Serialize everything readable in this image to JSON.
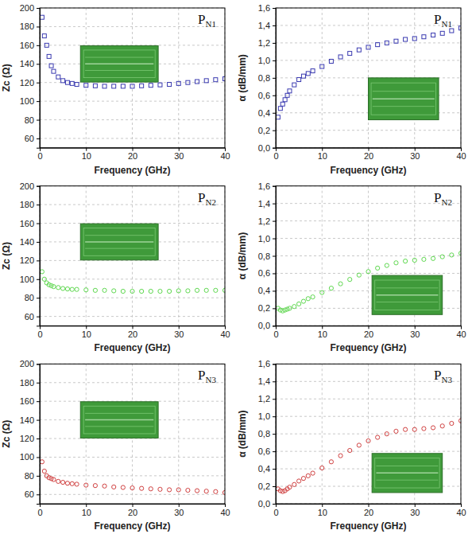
{
  "chart_data": [
    {
      "type": "scatter",
      "title": "PN1",
      "x_label": "Frequency (GHz)",
      "y_label": "Zc (Ω)",
      "x": [
        0.5,
        1,
        1.5,
        2,
        2.5,
        3,
        4,
        5,
        6,
        7,
        8,
        10,
        12,
        14,
        16,
        18,
        20,
        22,
        24,
        26,
        28,
        30,
        32,
        34,
        36,
        38,
        40
      ],
      "values": [
        190,
        170,
        160,
        148,
        138,
        132,
        126,
        122,
        120,
        119,
        118,
        117,
        116.5,
        116,
        116,
        116,
        116,
        116.5,
        117,
        117.5,
        118,
        119,
        120,
        121,
        122,
        123,
        124
      ],
      "color": "#3a3ab0",
      "marker": "square",
      "grid": true,
      "xlim": [
        0,
        40
      ],
      "xticks": [
        0,
        10,
        20,
        30,
        40
      ],
      "ylim": [
        50,
        200
      ],
      "yticks": [
        60,
        80,
        100,
        120,
        140,
        160,
        180,
        200
      ]
    },
    {
      "type": "scatter",
      "title": "PN1",
      "x_label": "Frequency (GHz)",
      "y_label": "α (dB/mm)",
      "x": [
        0.5,
        1,
        1.5,
        2,
        2.5,
        3,
        4,
        5,
        6,
        7,
        8,
        10,
        12,
        14,
        16,
        18,
        20,
        22,
        24,
        26,
        28,
        30,
        32,
        34,
        36,
        38,
        40
      ],
      "values": [
        0.35,
        0.45,
        0.5,
        0.55,
        0.6,
        0.65,
        0.72,
        0.78,
        0.82,
        0.85,
        0.88,
        0.93,
        0.99,
        1.04,
        1.08,
        1.12,
        1.15,
        1.18,
        1.2,
        1.22,
        1.24,
        1.25,
        1.27,
        1.29,
        1.31,
        1.34,
        1.37
      ],
      "color": "#3a3ab0",
      "marker": "square",
      "grid": true,
      "xlim": [
        0,
        40
      ],
      "xticks": [
        0,
        10,
        20,
        30,
        40
      ],
      "ylim": [
        0,
        1.6
      ],
      "yticks": [
        {
          "value": 0,
          "label": "0,0"
        },
        {
          "value": 0.2,
          "label": "0,2"
        },
        {
          "value": 0.4,
          "label": "0,4"
        },
        {
          "value": 0.6,
          "label": "0,6"
        },
        {
          "value": 0.8,
          "label": "0,8"
        },
        {
          "value": 1,
          "label": "1,0"
        },
        {
          "value": 1.2,
          "label": "1,2"
        },
        {
          "value": 1.4,
          "label": "1,4"
        },
        {
          "value": 1.6,
          "label": "1,6"
        }
      ]
    },
    {
      "type": "scatter",
      "title": "PN2",
      "x_label": "Frequency (GHz)",
      "y_label": "Zc (Ω)",
      "x": [
        0.5,
        1,
        1.5,
        2,
        2.5,
        3,
        4,
        5,
        6,
        7,
        8,
        10,
        12,
        14,
        16,
        18,
        20,
        22,
        24,
        26,
        28,
        30,
        32,
        34,
        36,
        38,
        40
      ],
      "values": [
        108,
        100,
        96,
        94,
        93,
        92,
        91,
        90,
        89.5,
        89,
        89,
        88.5,
        88,
        88,
        87.5,
        87,
        87,
        87,
        87,
        87,
        87,
        87.5,
        87.5,
        88,
        88,
        88,
        88
      ],
      "color": "#5fd850",
      "marker": "circle",
      "grid": true,
      "xlim": [
        0,
        40
      ],
      "xticks": [
        0,
        10,
        20,
        30,
        40
      ],
      "ylim": [
        50,
        200
      ],
      "yticks": [
        60,
        80,
        100,
        120,
        140,
        160,
        180,
        200
      ]
    },
    {
      "type": "scatter",
      "title": "PN2",
      "x_label": "Frequency (GHz)",
      "y_label": "α (dB/mm)",
      "x": [
        0.5,
        1,
        1.5,
        2,
        2.5,
        3,
        4,
        5,
        6,
        7,
        8,
        10,
        12,
        14,
        16,
        18,
        20,
        22,
        24,
        26,
        28,
        30,
        32,
        34,
        36,
        38,
        40
      ],
      "values": [
        0.2,
        0.18,
        0.17,
        0.18,
        0.19,
        0.2,
        0.22,
        0.25,
        0.28,
        0.31,
        0.33,
        0.38,
        0.43,
        0.48,
        0.53,
        0.58,
        0.62,
        0.66,
        0.69,
        0.72,
        0.74,
        0.75,
        0.76,
        0.77,
        0.79,
        0.81,
        0.83
      ],
      "color": "#5fd850",
      "marker": "circle",
      "grid": true,
      "xlim": [
        0,
        40
      ],
      "xticks": [
        0,
        10,
        20,
        30,
        40
      ],
      "ylim": [
        0,
        1.6
      ],
      "yticks": [
        {
          "value": 0,
          "label": "0,0"
        },
        {
          "value": 0.2,
          "label": "0,2"
        },
        {
          "value": 0.4,
          "label": "0,4"
        },
        {
          "value": 0.6,
          "label": "0,6"
        },
        {
          "value": 0.8,
          "label": "0,8"
        },
        {
          "value": 1,
          "label": "1,0"
        },
        {
          "value": 1.2,
          "label": "1,2"
        },
        {
          "value": 1.4,
          "label": "1,4"
        },
        {
          "value": 1.6,
          "label": "1,6"
        }
      ]
    },
    {
      "type": "scatter",
      "title": "PN3",
      "x_label": "Frequency (GHz)",
      "y_label": "Zc (Ω)",
      "x": [
        0.5,
        1,
        1.5,
        2,
        2.5,
        3,
        4,
        5,
        6,
        7,
        8,
        10,
        12,
        14,
        16,
        18,
        20,
        22,
        24,
        26,
        28,
        30,
        32,
        34,
        36,
        38,
        40
      ],
      "values": [
        95,
        85,
        80,
        78,
        77,
        76,
        74,
        73,
        72,
        71.5,
        71,
        70,
        69.5,
        69,
        68,
        67.5,
        67,
        66.5,
        66,
        65.5,
        65,
        65,
        64.5,
        64,
        63.5,
        63,
        62
      ],
      "color": "#d04040",
      "marker": "circle",
      "grid": true,
      "xlim": [
        0,
        40
      ],
      "xticks": [
        0,
        10,
        20,
        30,
        40
      ],
      "ylim": [
        50,
        200
      ],
      "yticks": [
        60,
        80,
        100,
        120,
        140,
        160,
        180,
        200
      ]
    },
    {
      "type": "scatter",
      "title": "PN3",
      "x_label": "Frequency (GHz)",
      "y_label": "α (dB/mm)",
      "x": [
        0.5,
        1,
        1.5,
        2,
        2.5,
        3,
        4,
        5,
        6,
        7,
        8,
        10,
        12,
        14,
        16,
        18,
        20,
        22,
        24,
        26,
        28,
        30,
        32,
        34,
        36,
        38,
        40
      ],
      "values": [
        0.17,
        0.15,
        0.14,
        0.15,
        0.17,
        0.19,
        0.22,
        0.26,
        0.29,
        0.32,
        0.35,
        0.41,
        0.48,
        0.55,
        0.61,
        0.67,
        0.72,
        0.76,
        0.8,
        0.83,
        0.85,
        0.85,
        0.86,
        0.87,
        0.89,
        0.92,
        0.95
      ],
      "color": "#d04040",
      "marker": "circle",
      "grid": true,
      "xlim": [
        0,
        40
      ],
      "xticks": [
        0,
        10,
        20,
        30,
        40
      ],
      "ylim": [
        0,
        1.6
      ],
      "yticks": [
        {
          "value": 0,
          "label": "0,0"
        },
        {
          "value": 0.2,
          "label": "0,2"
        },
        {
          "value": 0.4,
          "label": "0,4"
        },
        {
          "value": 0.6,
          "label": "0,6"
        },
        {
          "value": 0.8,
          "label": "0,8"
        },
        {
          "value": 1,
          "label": "1,0"
        },
        {
          "value": 1.2,
          "label": "1,2"
        },
        {
          "value": 1.4,
          "label": "1,4"
        },
        {
          "value": 1.6,
          "label": "1,6"
        }
      ]
    }
  ]
}
